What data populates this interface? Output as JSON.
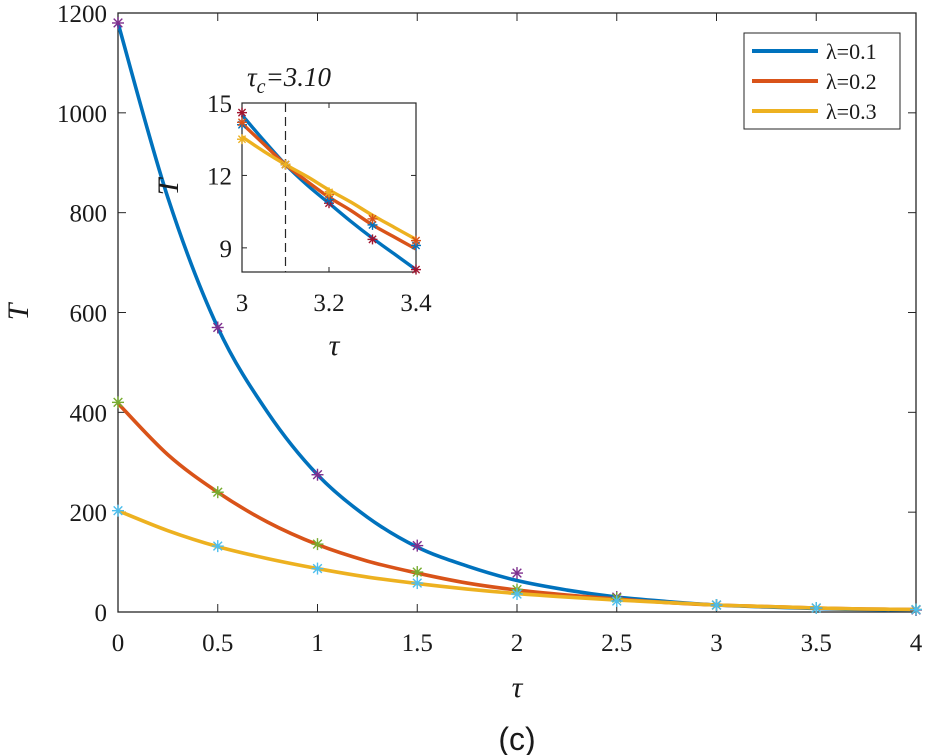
{
  "caption": "(c)",
  "chart_data": [
    {
      "type": "line",
      "xlabel": "τ",
      "ylabel": "T",
      "xlim": [
        0,
        4
      ],
      "ylim": [
        0,
        1200
      ],
      "xticks": [
        0,
        0.5,
        1,
        1.5,
        2,
        2.5,
        3,
        3.5,
        4
      ],
      "xtick_labels": [
        "0",
        "0.5",
        "1",
        "1.5",
        "2",
        "2.5",
        "3",
        "3.5",
        "4"
      ],
      "yticks": [
        0,
        200,
        400,
        600,
        800,
        1000,
        1200
      ],
      "ytick_labels": [
        "0",
        "200",
        "400",
        "600",
        "800",
        "1000",
        "1200"
      ],
      "legend_position": "top-right",
      "series": [
        {
          "name": "λ=0.1",
          "color": "#0072BD",
          "curve": {
            "x": [
              0,
              0.25,
              0.5,
              0.75,
              1,
              1.25,
              1.5,
              1.75,
              2,
              2.25,
              2.5,
              2.75,
              3,
              3.25,
              3.5,
              3.75,
              4
            ],
            "y": [
              1180,
              830,
              570,
              400,
              275,
              190,
              130,
              92,
              63,
              44,
              30,
              21,
              14,
              10,
              7,
              5,
              4
            ]
          },
          "markers": {
            "x": [
              0,
              0.5,
              1,
              1.5,
              2,
              2.5,
              3,
              3.5,
              4
            ],
            "y": [
              1180,
              570,
              275,
              133,
              78,
              30,
              14,
              8,
              4
            ],
            "color": "#7E2F8E"
          }
        },
        {
          "name": "λ=0.2",
          "color": "#D95319",
          "curve": {
            "x": [
              0,
              0.25,
              0.5,
              0.75,
              1,
              1.25,
              1.5,
              1.75,
              2,
              2.25,
              2.5,
              2.75,
              3,
              3.25,
              3.5,
              3.75,
              4
            ],
            "y": [
              418,
              315,
              240,
              180,
              135,
              102,
              78,
              58,
              44,
              34,
              26,
              19,
              14,
              11,
              8,
              6,
              5
            ]
          },
          "markers": {
            "x": [
              0,
              0.5,
              1,
              1.5,
              2,
              2.5,
              3,
              3.5,
              4
            ],
            "y": [
              420,
              240,
              136,
              80,
              45,
              28,
              14,
              8,
              5
            ],
            "color": "#77AC30"
          }
        },
        {
          "name": "λ=0.3",
          "color": "#EDB120",
          "curve": {
            "x": [
              0,
              0.25,
              0.5,
              0.75,
              1,
              1.25,
              1.5,
              1.75,
              2,
              2.25,
              2.5,
              2.75,
              3,
              3.25,
              3.5,
              3.75,
              4
            ],
            "y": [
              203,
              163,
              131,
              107,
              87,
              70,
              57,
              46,
              37,
              30,
              24,
              19,
              14,
              11,
              8,
              6,
              5
            ]
          },
          "markers": {
            "x": [
              0,
              0.5,
              1,
              1.5,
              2,
              2.5,
              3,
              3.5,
              4
            ],
            "y": [
              203,
              132,
              87,
              58,
              36,
              22,
              14,
              8,
              5
            ],
            "color": "#4DBEEE"
          }
        }
      ]
    },
    {
      "type": "line",
      "title": "τ_c=3.10",
      "xlabel": "τ",
      "ylabel": "T",
      "xlim": [
        3,
        3.4
      ],
      "ylim": [
        8,
        15
      ],
      "xticks": [
        3,
        3.2,
        3.4
      ],
      "xtick_labels": [
        "3",
        "3.2",
        "3.4"
      ],
      "yticks": [
        9,
        12,
        15
      ],
      "ytick_labels": [
        "9",
        "12",
        "15"
      ],
      "vline": 3.1,
      "series": [
        {
          "name": "λ=0.1",
          "color": "#0072BD",
          "curve": {
            "x": [
              3,
              3.05,
              3.1,
              3.15,
              3.2,
              3.25,
              3.3,
              3.35,
              3.4
            ],
            "y": [
              14.5,
              13.45,
              12.45,
              11.6,
              10.85,
              10.1,
              9.4,
              8.75,
              8.1
            ]
          },
          "markers": [
            {
              "x": [
                3,
                3.1,
                3.2,
                3.3,
                3.4
              ],
              "y": [
                14.6,
                12.45,
                10.85,
                9.35,
                8.1
              ],
              "color": "#A2142F"
            },
            {
              "x": [
                3,
                3.1,
                3.2,
                3.3,
                3.4
              ],
              "y": [
                14.1,
                12.45,
                11.0,
                9.95,
                9.1
              ],
              "color": "#0072BD"
            }
          ]
        },
        {
          "name": "λ=0.2",
          "color": "#D95319",
          "curve": {
            "x": [
              3,
              3.05,
              3.1,
              3.15,
              3.2,
              3.25,
              3.3,
              3.35,
              3.4
            ],
            "y": [
              14.15,
              13.3,
              12.45,
              11.75,
              11.1,
              10.55,
              9.95,
              9.45,
              8.95
            ]
          },
          "markers": [
            {
              "x": [
                3,
                3.1,
                3.2,
                3.3,
                3.4
              ],
              "y": [
                14.2,
                12.45,
                11.2,
                10.2,
                9.3
              ],
              "color": "#D95319"
            }
          ]
        },
        {
          "name": "λ=0.3",
          "color": "#EDB120",
          "curve": {
            "x": [
              3,
              3.05,
              3.1,
              3.15,
              3.2,
              3.25,
              3.3,
              3.35,
              3.4
            ],
            "y": [
              13.6,
              13.0,
              12.45,
              11.95,
              11.4,
              10.9,
              10.35,
              9.85,
              9.35
            ]
          },
          "markers": [
            {
              "x": [
                3,
                3.1,
                3.2
              ],
              "y": [
                13.5,
                12.45,
                11.3
              ],
              "color": "#EDB120"
            }
          ]
        }
      ]
    }
  ]
}
